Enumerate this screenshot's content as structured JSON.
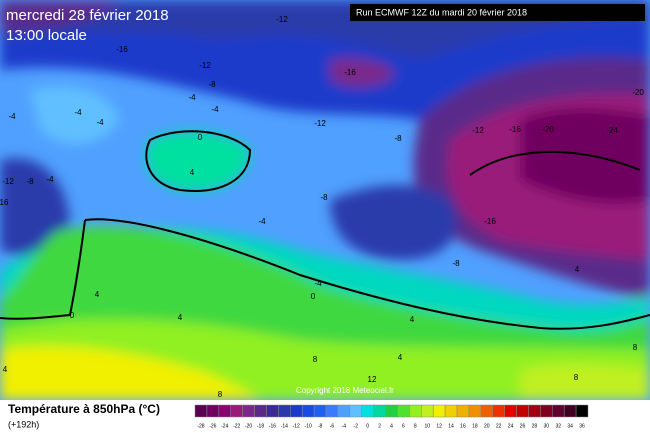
{
  "header": {
    "date": "mercredi 28 février 2018",
    "time": "13:00 locale",
    "run": "Run ECMWF 12Z du mardi 20 février 2018"
  },
  "map": {
    "copyright": "Copyright 2018 Meteociel.fr",
    "contour_labels": [
      -12,
      -16,
      -12,
      -16,
      -8,
      -4,
      -4,
      -20,
      -20,
      -24,
      -16,
      -12,
      -8,
      -12,
      -4,
      -4,
      -4,
      0,
      4,
      -12,
      -8,
      -4,
      16,
      -8,
      -4,
      -16,
      -8,
      -4,
      0,
      0,
      4,
      4,
      4,
      4,
      4,
      8,
      4,
      12,
      8,
      8,
      8
    ]
  },
  "legend": {
    "title": "Température à 850hPa (°C)",
    "lead": "(+192h)",
    "ticks": [
      -28,
      -26,
      -24,
      -22,
      -20,
      -18,
      -16,
      -14,
      -12,
      -10,
      -8,
      -6,
      -4,
      -2,
      0,
      2,
      4,
      6,
      8,
      10,
      12,
      14,
      16,
      18,
      20,
      22,
      24,
      26,
      28,
      30,
      32,
      34,
      36
    ],
    "colors": [
      "#5a0050",
      "#700060",
      "#8a0070",
      "#9a1a7a",
      "#7a2a8a",
      "#5a2a8a",
      "#3a2a9a",
      "#2a3aaa",
      "#1a3aca",
      "#1a4ae0",
      "#2060f0",
      "#3a7aff",
      "#50a0ff",
      "#60c0ff",
      "#00e0e0",
      "#00d8a0",
      "#20d040",
      "#50e030",
      "#90f020",
      "#c0f020",
      "#f0f000",
      "#f0d000",
      "#f0b000",
      "#f09000",
      "#f06000",
      "#f03000",
      "#e00000",
      "#c00000",
      "#a00010",
      "#800020",
      "#600030",
      "#400020",
      "#000000"
    ]
  }
}
